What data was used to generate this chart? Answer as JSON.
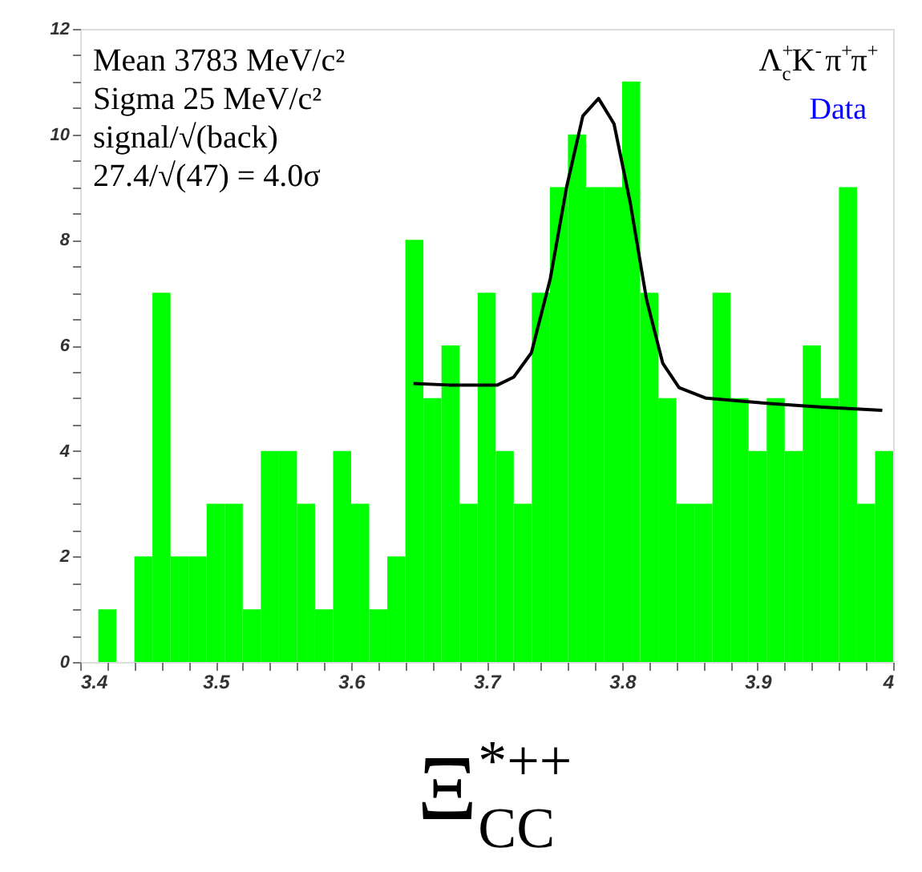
{
  "chart_data": {
    "type": "histogram",
    "xlabel": "Ξ$^{*++}$$_{CC}$",
    "bins": [
      3.4,
      3.41333,
      3.42667,
      3.44,
      3.45333,
      3.46667,
      3.48,
      3.49333,
      3.50667,
      3.52,
      3.53333,
      3.54667,
      3.56,
      3.57333,
      3.58667,
      3.6,
      3.61333,
      3.62667,
      3.64,
      3.65333,
      3.66667,
      3.68,
      3.69333,
      3.70667,
      3.72,
      3.73333,
      3.74667,
      3.76,
      3.77333,
      3.78667,
      3.8,
      3.81333,
      3.82667,
      3.84,
      3.85333,
      3.86667,
      3.88,
      3.89333,
      3.90667,
      3.92,
      3.93333,
      3.94667,
      3.96,
      3.97333,
      3.98667,
      4.0
    ],
    "values": [
      0,
      1,
      0,
      2,
      7,
      2,
      2,
      3,
      3,
      1,
      4,
      4,
      3,
      1,
      4,
      3,
      1,
      2,
      8,
      5,
      6,
      3,
      7,
      4,
      3,
      7,
      9,
      10,
      9,
      9,
      11,
      7,
      5,
      3,
      3,
      7,
      5,
      4,
      5,
      4,
      6,
      5,
      9,
      3,
      4
    ],
    "color": "#00ff00",
    "series": [
      {
        "type": "line",
        "color": "#000000",
        "x": [
          3.646,
          3.672,
          3.708,
          3.72,
          3.733,
          3.747,
          3.759,
          3.771,
          3.7826,
          3.794,
          3.806,
          3.818,
          3.83,
          3.842,
          3.862,
          3.909,
          3.948,
          3.992
        ],
        "values": [
          5.28,
          5.25,
          5.25,
          5.4,
          5.86,
          7.27,
          9.0,
          10.35,
          10.68,
          10.2,
          8.7,
          6.87,
          5.66,
          5.2,
          5.0,
          4.9,
          4.83,
          4.77
        ]
      }
    ],
    "xlim": [
      3.4,
      4.0
    ],
    "ylim": [
      0,
      12
    ],
    "xticks": [
      3.4,
      {
        "value": 3.42,
        "label": null
      },
      {
        "value": 3.44,
        "label": null
      },
      {
        "value": 3.46,
        "label": null
      },
      {
        "value": 3.48,
        "label": null
      },
      3.5,
      {
        "value": 3.52,
        "label": null
      },
      {
        "value": 3.54,
        "label": null
      },
      {
        "value": 3.56,
        "label": null
      },
      {
        "value": 3.58,
        "label": null
      },
      3.6,
      {
        "value": 3.62,
        "label": null
      },
      {
        "value": 3.64,
        "label": null
      },
      {
        "value": 3.66,
        "label": null
      },
      {
        "value": 3.68,
        "label": null
      },
      3.7,
      {
        "value": 3.72,
        "label": null
      },
      {
        "value": 3.74,
        "label": null
      },
      {
        "value": 3.76,
        "label": null
      },
      {
        "value": 3.78,
        "label": null
      },
      3.8,
      {
        "value": 3.82,
        "label": null
      },
      {
        "value": 3.84,
        "label": null
      },
      {
        "value": 3.86,
        "label": null
      },
      {
        "value": 3.88,
        "label": null
      },
      3.9,
      {
        "value": 3.92,
        "label": null
      },
      {
        "value": 3.94,
        "label": null
      },
      {
        "value": 3.96,
        "label": null
      },
      {
        "value": 3.98,
        "label": null
      },
      4
    ],
    "yticks": [
      0,
      {
        "value": 0.5,
        "label": null
      },
      {
        "value": 1,
        "label": null
      },
      {
        "value": 1.5,
        "label": null
      },
      2,
      {
        "value": 2.5,
        "label": null
      },
      {
        "value": 3,
        "label": null
      },
      {
        "value": 3.5,
        "label": null
      },
      4,
      {
        "value": 4.5,
        "label": null
      },
      {
        "value": 5,
        "label": null
      },
      {
        "value": 5.5,
        "label": null
      },
      6,
      {
        "value": 6.5,
        "label": null
      },
      {
        "value": 7,
        "label": null
      },
      {
        "value": 7.5,
        "label": null
      },
      8,
      {
        "value": 8.5,
        "label": null
      },
      {
        "value": 9,
        "label": null
      },
      {
        "value": 9.5,
        "label": null
      },
      10,
      {
        "value": 10.5,
        "label": null
      },
      {
        "value": 11,
        "label": null
      },
      {
        "value": 11.5,
        "label": null
      },
      12
    ],
    "grid": false,
    "annotations": [
      "Mean 3783 MeV/c²",
      "Sigma 25 MeV/c²",
      "signal/√(back)",
      "27.4/√(47) = 4.0σ",
      "Λ$_{c}$$^{+}$K$^{-}$π$^{+}$π$^{+}$",
      "Data"
    ]
  }
}
